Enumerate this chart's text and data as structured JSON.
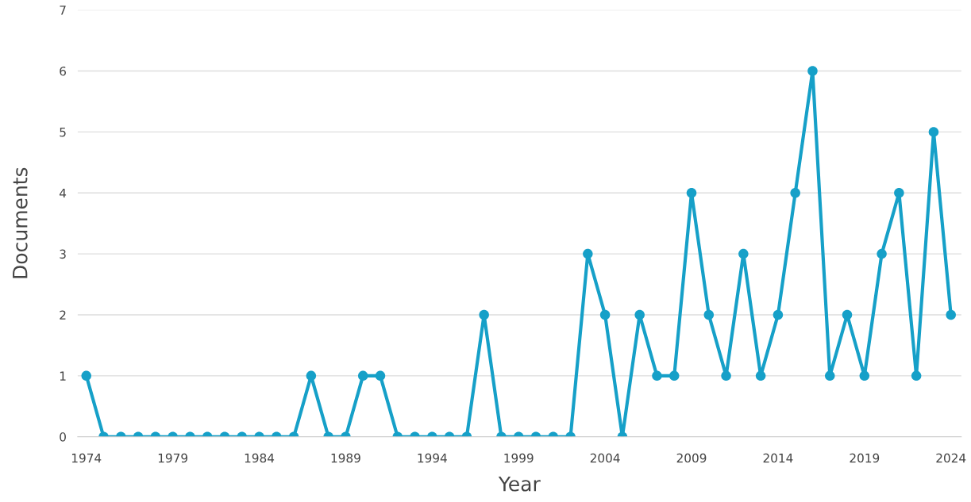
{
  "chart_data": {
    "type": "line",
    "xlabel": "Year",
    "ylabel": "Documents",
    "x": [
      1974,
      1975,
      1976,
      1977,
      1978,
      1979,
      1980,
      1981,
      1982,
      1983,
      1984,
      1985,
      1986,
      1987,
      1988,
      1989,
      1990,
      1991,
      1992,
      1993,
      1994,
      1995,
      1996,
      1997,
      1998,
      1999,
      2000,
      2001,
      2002,
      2003,
      2004,
      2005,
      2006,
      2007,
      2008,
      2009,
      2010,
      2011,
      2012,
      2013,
      2014,
      2015,
      2016,
      2017,
      2018,
      2019,
      2020,
      2021,
      2022,
      2023,
      2024
    ],
    "series": [
      {
        "color": "#16a0c8",
        "values": [
          1,
          0,
          0,
          0,
          0,
          0,
          0,
          0,
          0,
          0,
          0,
          0,
          0,
          1,
          0,
          0,
          1,
          1,
          0,
          0,
          0,
          0,
          0,
          2,
          0,
          0,
          0,
          0,
          0,
          3,
          2,
          0,
          2,
          1,
          1,
          4,
          2,
          1,
          3,
          1,
          2,
          4,
          6,
          1,
          2,
          1,
          3,
          4,
          1,
          5,
          2
        ]
      }
    ],
    "xlim": [
      1973.5,
      2024.6
    ],
    "xticks": [
      1974,
      1979,
      1984,
      1989,
      1994,
      1999,
      2004,
      2009,
      2014,
      2019,
      2024
    ],
    "ylim": [
      0,
      7
    ],
    "yticks": [
      0,
      1,
      2,
      3,
      4,
      5,
      6,
      7
    ],
    "grid": "y",
    "marker": "circle",
    "line_style": "solid"
  }
}
